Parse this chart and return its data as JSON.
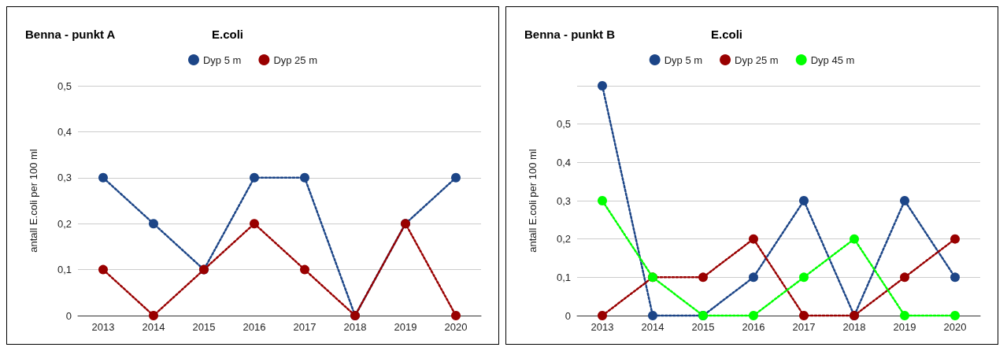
{
  "chart_data": [
    {
      "type": "line",
      "title": "Benna - punkt A",
      "subtitle": "E.coli",
      "ylabel": "antall E.coli per 100 ml",
      "categories": [
        "2013",
        "2014",
        "2015",
        "2016",
        "2017",
        "2018",
        "2019",
        "2020"
      ],
      "series": [
        {
          "name": "Dyp 5 m",
          "color": "#1c4587",
          "values": [
            0.3,
            0.2,
            0.1,
            0.3,
            0.3,
            0,
            0.2,
            0.3
          ]
        },
        {
          "name": "Dyp 25 m",
          "color": "#990000",
          "values": [
            0.1,
            0,
            0.1,
            0.2,
            0.1,
            0,
            0.2,
            0
          ]
        }
      ],
      "ylim": [
        0,
        0.5
      ],
      "yticks": [
        {
          "value": 0,
          "label": "0"
        },
        {
          "value": 0.1,
          "label": "0,1"
        },
        {
          "value": 0.2,
          "label": "0,2"
        },
        {
          "value": 0.3,
          "label": "0,3"
        },
        {
          "value": 0.4,
          "label": "0,4"
        },
        {
          "value": 0.5,
          "label": "0,5"
        }
      ],
      "grid": "y",
      "legend": "top",
      "marker": "circle",
      "line_style": "dotted"
    },
    {
      "type": "line",
      "title": "Benna - punkt B",
      "subtitle": "E.coli",
      "ylabel": "antall E.coli per 100 ml",
      "categories": [
        "2013",
        "2014",
        "2015",
        "2016",
        "2017",
        "2018",
        "2019",
        "2020"
      ],
      "series": [
        {
          "name": "Dyp 5 m",
          "color": "#1c4587",
          "values": [
            0.6,
            0,
            0,
            0.1,
            0.3,
            0,
            0.3,
            0.1
          ]
        },
        {
          "name": "Dyp 25 m",
          "color": "#990000",
          "values": [
            0,
            0.1,
            0.1,
            0.2,
            0,
            0,
            0.1,
            0.2
          ]
        },
        {
          "name": "Dyp 45 m",
          "color": "#00ff00",
          "values": [
            0.3,
            0.1,
            0,
            0,
            0.1,
            0.2,
            0,
            0
          ]
        }
      ],
      "ylim": [
        0,
        0.6
      ],
      "yticks": [
        {
          "value": 0,
          "label": "0"
        },
        {
          "value": 0.1,
          "label": "0,1"
        },
        {
          "value": 0.2,
          "label": "0,2"
        },
        {
          "value": 0.3,
          "label": "0,3"
        },
        {
          "value": 0.4,
          "label": "0,4"
        },
        {
          "value": 0.5,
          "label": "0,5"
        },
        {
          "value": 0.6,
          "label": null
        }
      ],
      "grid": "y",
      "legend": "top",
      "marker": "circle",
      "line_style": "dotted"
    }
  ]
}
